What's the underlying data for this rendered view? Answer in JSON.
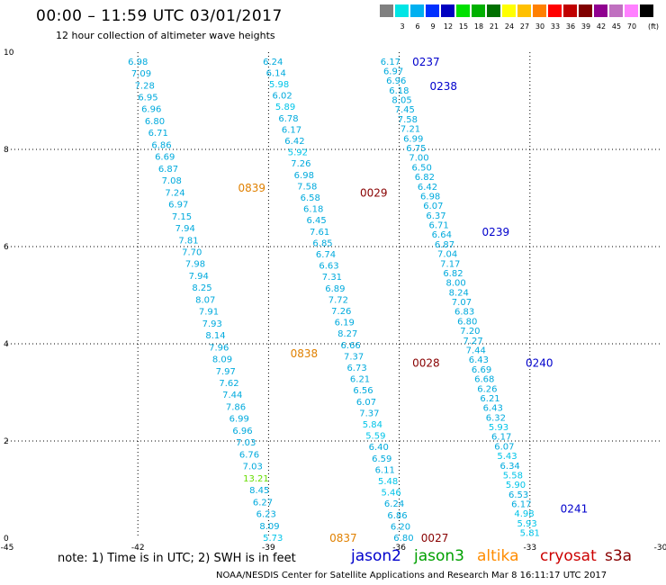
{
  "header": {
    "title": "00:00 – 11:59 UTC 03/01/2017",
    "subtitle": "12 hour collection of altimeter wave heights"
  },
  "color_scale": {
    "unit_label": "(ft)",
    "bins": [
      {
        "label": "",
        "color": "#808080"
      },
      {
        "label": "3",
        "color": "#00e5e5"
      },
      {
        "label": "6",
        "color": "#00b0f0"
      },
      {
        "label": "9",
        "color": "#0030ff"
      },
      {
        "label": "12",
        "color": "#0000c0"
      },
      {
        "label": "15",
        "color": "#00e000"
      },
      {
        "label": "18",
        "color": "#00b000"
      },
      {
        "label": "21",
        "color": "#007000"
      },
      {
        "label": "24",
        "color": "#ffff00"
      },
      {
        "label": "27",
        "color": "#ffc000"
      },
      {
        "label": "30",
        "color": "#ff8000"
      },
      {
        "label": "33",
        "color": "#ff0000"
      },
      {
        "label": "36",
        "color": "#c00000"
      },
      {
        "label": "39",
        "color": "#800000"
      },
      {
        "label": "42",
        "color": "#900090"
      },
      {
        "label": "45",
        "color": "#c070c0"
      },
      {
        "label": "70",
        "color": "#ff80ff"
      },
      {
        "label": "",
        "color": "#000000"
      }
    ]
  },
  "legend": {
    "jason2": {
      "label": "jason2",
      "color": "#0000cc"
    },
    "jason3": {
      "label": "jason3",
      "color": "#00a000"
    },
    "altika": {
      "label": "altika",
      "color": "#ff8c00"
    },
    "cryosat": {
      "label": "cryosat",
      "color": "#cc0000"
    },
    "s3a": {
      "label": "s3a",
      "color": "#880000"
    }
  },
  "footer": {
    "note": "note:  1) Time is in UTC;  2) SWH is in feet",
    "credit": "NOAA/NESDIS Center for Satellite Applications and Research    Mar  8 16:11:17 UTC 2017"
  },
  "colors": {
    "swh_low": "#00aadd",
    "swh_mid": "#00c4e8",
    "swh_green": "#66dd00",
    "time_jason2": "#0000cc",
    "time_altika": "#e08000",
    "time_cryosat": "#880000"
  },
  "chart_data": {
    "type": "scatter",
    "xlim": [
      -45,
      -30
    ],
    "ylim": [
      0,
      10
    ],
    "x_ticks": [
      "-45",
      "-42",
      "-39",
      "-36",
      "-33",
      "-30"
    ],
    "y_ticks": [
      "0",
      "2",
      "4",
      "6",
      "8",
      "10"
    ],
    "grid": true,
    "tracks": [
      {
        "satellite": "altika",
        "x_start": -42.0,
        "y_start": 9.8,
        "x_end": -38.9,
        "y_end": 0.0,
        "values": [
          "6.98",
          "7.09",
          "7.28",
          "6.95",
          "6.96",
          "6.80",
          "6.71",
          "6.86",
          "6.69",
          "6.87",
          "7.08",
          "7.24",
          "6.97",
          "7.15",
          "7.94",
          "7.81",
          "7.70",
          "7.98",
          "7.94",
          "8.25",
          "8.07",
          "7.91",
          "7.93",
          "8.14",
          "7.96",
          "8.09",
          "7.97",
          "7.62",
          "7.44",
          "7.86",
          "6.99",
          "6.96",
          "7.03",
          "6.76",
          "7.03",
          "13.21",
          "8.45",
          "6.27",
          "6.23",
          "8.09",
          "5.73"
        ],
        "times": [
          {
            "label": "0839",
            "x": -39.7,
            "y": 7.2
          },
          {
            "label": "0838",
            "x": -38.5,
            "y": 3.8
          },
          {
            "label": "0837",
            "x": -37.6,
            "y": 0.0
          }
        ]
      },
      {
        "satellite": "s3a",
        "x_start": -38.9,
        "y_start": 9.8,
        "x_end": -35.9,
        "y_end": 0.0,
        "values": [
          "6.24",
          "6.14",
          "5.98",
          "6.02",
          "5.89",
          "6.78",
          "6.17",
          "6.42",
          "5.92",
          "7.26",
          "6.98",
          "7.58",
          "6.58",
          "6.18",
          "6.45",
          "7.61",
          "6.85",
          "6.74",
          "6.63",
          "7.31",
          "6.89",
          "7.72",
          "7.26",
          "6.19",
          "8.27",
          "6.66",
          "7.37",
          "6.73",
          "6.21",
          "6.56",
          "6.07",
          "7.37",
          "5.84",
          "5.59",
          "6.40",
          "6.59",
          "6.11",
          "5.48",
          "5.46",
          "6.24",
          "6.86",
          "6.20",
          "6.80"
        ],
        "times": [
          {
            "label": "0029",
            "x": -36.9,
            "y": 7.1
          },
          {
            "label": "0028",
            "x": -35.7,
            "y": 3.6
          },
          {
            "label": "0027",
            "x": -35.5,
            "y": 0.0
          }
        ]
      },
      {
        "satellite": "jason2",
        "x_start": -36.2,
        "y_start": 9.8,
        "x_end": -33.0,
        "y_end": 0.1,
        "values": [
          "6.17",
          "6.97",
          "6.96",
          "6.18",
          "8.05",
          "7.45",
          "7.58",
          "7.21",
          "6.99",
          "6.75",
          "7.00",
          "6.50",
          "6.82",
          "6.42",
          "6.98",
          "6.07",
          "6.37",
          "6.71",
          "6.64",
          "6.87",
          "7.04",
          "7.17",
          "6.82",
          "8.00",
          "8.24",
          "7.07",
          "6.83",
          "6.80",
          "7.20",
          "7.27",
          "7.44",
          "6.43",
          "6.69",
          "6.68",
          "6.26",
          "6.21",
          "6.43",
          "6.32",
          "5.93",
          "6.17",
          "6.07",
          "5.43",
          "6.34",
          "5.58",
          "5.90",
          "6.53",
          "6.17",
          "4.98",
          "5.93",
          "5.81"
        ],
        "times": [
          {
            "label": "0237",
            "x": -35.7,
            "y": 9.8
          },
          {
            "label": "0238",
            "x": -35.3,
            "y": 9.3
          },
          {
            "label": "0239",
            "x": -34.1,
            "y": 6.3
          },
          {
            "label": "0240",
            "x": -33.1,
            "y": 3.6
          },
          {
            "label": "0241",
            "x": -32.3,
            "y": 0.6
          }
        ]
      }
    ]
  }
}
